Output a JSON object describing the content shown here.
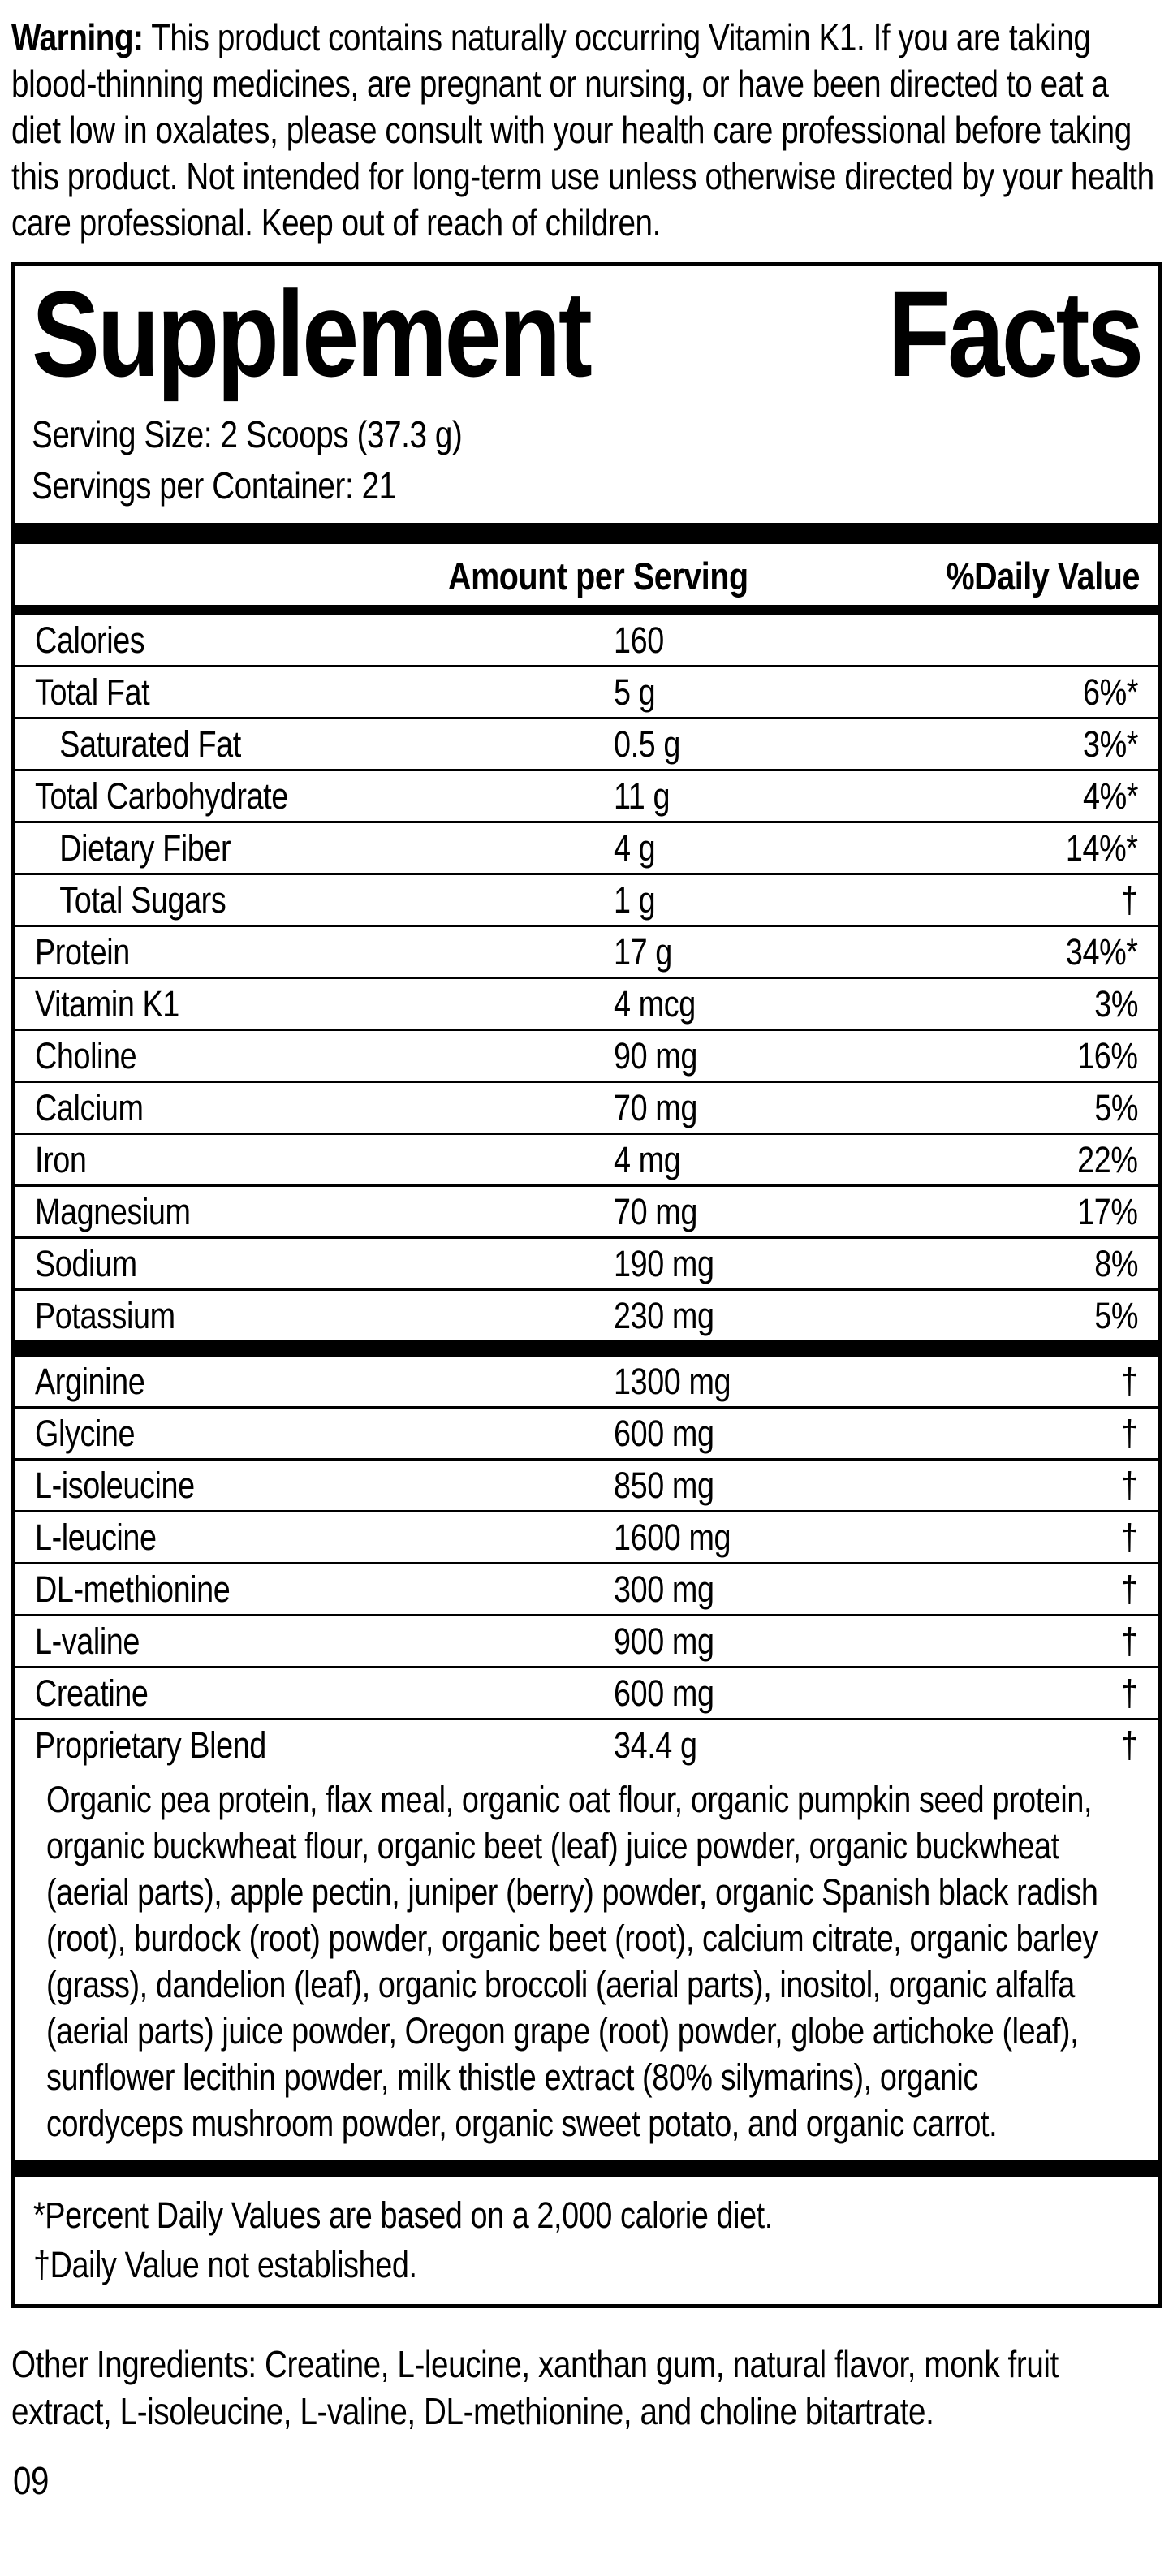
{
  "warning": {
    "label": "Warning:",
    "text": " This product contains naturally occurring Vitamin K1. If you are taking blood-thinning medicines, are pregnant or nursing, or have been directed to eat a diet low in oxalates, please consult with your health care professional before taking this product. Not intended for long-term use unless otherwise directed by your health care professional. Keep out of reach of children."
  },
  "panel": {
    "title_word1": "Supplement",
    "title_word2": "Facts",
    "serving_size": "Serving Size: 2 Scoops (37.3 g)",
    "servings_per_container": "Servings per Container: 21",
    "header": {
      "amount": "Amount per Serving",
      "daily_value": "%Daily Value"
    },
    "rows": [
      {
        "label": "Calories",
        "amount": "160",
        "dv": "",
        "indent": false
      },
      {
        "label": "Total Fat",
        "amount": "5 g",
        "dv": "6%*",
        "indent": false
      },
      {
        "label": "Saturated Fat",
        "amount": "0.5 g",
        "dv": "3%*",
        "indent": true
      },
      {
        "label": "Total Carbohydrate",
        "amount": "11 g",
        "dv": "4%*",
        "indent": false
      },
      {
        "label": "Dietary Fiber",
        "amount": "4 g",
        "dv": "14%*",
        "indent": true
      },
      {
        "label": "Total Sugars",
        "amount": "1 g",
        "dv": "†",
        "indent": true
      },
      {
        "label": "Protein",
        "amount": "17 g",
        "dv": "34%*",
        "indent": false
      },
      {
        "label": "Vitamin K1",
        "amount": "4 mcg",
        "dv": "3%",
        "indent": false
      },
      {
        "label": "Choline",
        "amount": "90 mg",
        "dv": "16%",
        "indent": false
      },
      {
        "label": "Calcium",
        "amount": "70 mg",
        "dv": "5%",
        "indent": false
      },
      {
        "label": "Iron",
        "amount": "4 mg",
        "dv": "22%",
        "indent": false
      },
      {
        "label": "Magnesium",
        "amount": "70 mg",
        "dv": "17%",
        "indent": false
      },
      {
        "label": "Sodium",
        "amount": "190 mg",
        "dv": "8%",
        "indent": false
      },
      {
        "label": "Potassium",
        "amount": "230 mg",
        "dv": "5%",
        "indent": false
      }
    ],
    "amino_rows": [
      {
        "label": "Arginine",
        "amount": "1300 mg",
        "dv": "†",
        "indent": false
      },
      {
        "label": "Glycine",
        "amount": "600 mg",
        "dv": "†",
        "indent": false
      },
      {
        "label": "L-isoleucine",
        "amount": "850 mg",
        "dv": "†",
        "indent": false
      },
      {
        "label": "L-leucine",
        "amount": "1600 mg",
        "dv": "†",
        "indent": false
      },
      {
        "label": "DL-methionine",
        "amount": "300 mg",
        "dv": "†",
        "indent": false
      },
      {
        "label": "L-valine",
        "amount": "900 mg",
        "dv": "†",
        "indent": false
      },
      {
        "label": "Creatine",
        "amount": "600 mg",
        "dv": "†",
        "indent": false
      },
      {
        "label": "Proprietary Blend",
        "amount": "34.4 g",
        "dv": "†",
        "indent": false
      }
    ],
    "blend_description": "Organic pea protein, flax meal, organic oat flour, organic pumpkin seed protein, organic buckwheat flour, organic beet (leaf) juice powder, organic buckwheat (aerial parts), apple pectin, juniper (berry) powder, organic Spanish black radish (root), burdock (root) powder, organic beet (root), calcium citrate, organic barley (grass), dandelion (leaf), organic broccoli (aerial parts), inositol, organic alfalfa (aerial parts) juice powder, Oregon grape (root) powder, globe artichoke (leaf), sunflower lecithin powder, milk thistle extract (80% silymarins), organic cordyceps mushroom powder, organic sweet potato, and organic carrot.",
    "footnotes": [
      "*Percent Daily Values are based on a 2,000 calorie diet.",
      "†Daily Value not established."
    ]
  },
  "other_ingredients": {
    "label": "Other Ingredients:",
    "text": " Creatine, L-leucine, xanthan gum, natural flavor, monk fruit extract, L-isoleucine, L-valine, DL-methionine, and choline bitartrate."
  },
  "page_number": "09",
  "colors": {
    "text": "#000000",
    "background": "#ffffff"
  }
}
